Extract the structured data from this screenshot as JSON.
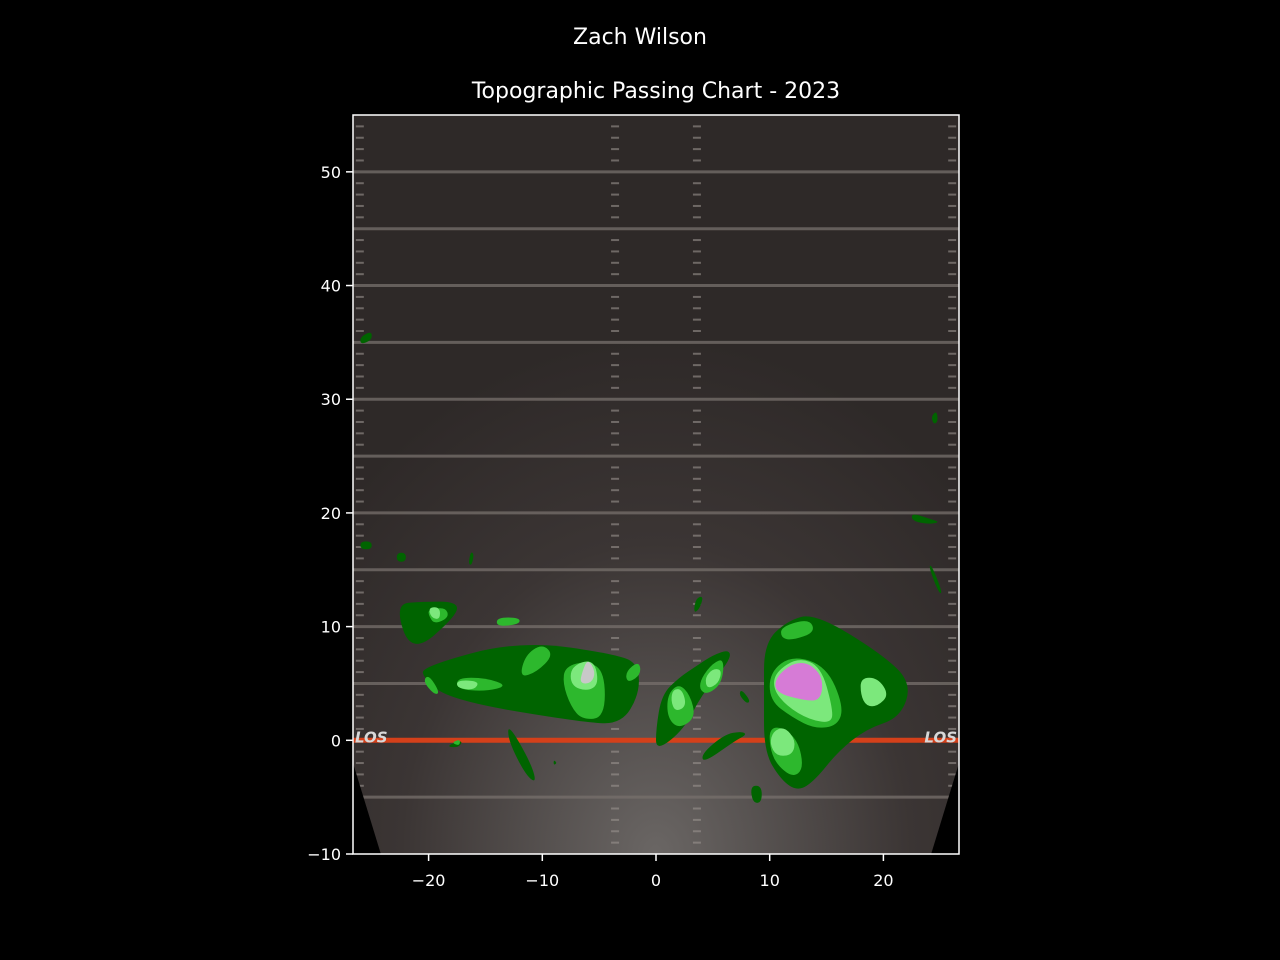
{
  "chart_data": {
    "type": "contour",
    "suptitle": "Zach Wilson",
    "title": "Topographic Passing Chart - 2023",
    "xlabel": "",
    "ylabel": "",
    "xlim": [
      -26.65,
      26.65
    ],
    "ylim": [
      -10,
      55
    ],
    "xticks": [
      -20,
      -10,
      0,
      10,
      20
    ],
    "yticks": [
      -10,
      0,
      10,
      20,
      30,
      40,
      50
    ],
    "xtick_labels": [
      "−20",
      "−10",
      "0",
      "10",
      "20"
    ],
    "ytick_labels": [
      "−10",
      "0",
      "10",
      "20",
      "30",
      "40",
      "50"
    ],
    "grid": false,
    "background": {
      "description": "football field image",
      "yard_lines": [
        -5,
        5,
        10,
        15,
        20,
        25,
        30,
        35,
        40,
        45,
        50
      ],
      "line_of_scrimmage": 0,
      "los_label": "LOS",
      "hash_x": [
        -3.6,
        3.6
      ],
      "los_color": "#d4401a"
    },
    "colors": {
      "level1": "#006400",
      "level2": "#2db82d",
      "level3": "#7ce87c",
      "level4_pink": "#d67bd6",
      "level4_gray": "#c8c8c8",
      "field": "#3a3432"
    },
    "contours": [
      {
        "level": 1,
        "points": [
          [
            -20.5,
            12.2
          ],
          [
            -17.5,
            12.2
          ],
          [
            -17.5,
            11
          ],
          [
            -21.5,
            7.5
          ],
          [
            -23,
            12
          ]
        ]
      },
      {
        "level": 1,
        "points": [
          [
            -20.5,
            6.5
          ],
          [
            -12,
            8.8
          ],
          [
            -3,
            7.5
          ],
          [
            -1.5,
            6.5
          ],
          [
            -1.5,
            4
          ],
          [
            -3,
            1.5
          ],
          [
            -6,
            1.5
          ],
          [
            -18,
            3.5
          ],
          [
            -20.5,
            5.5
          ]
        ]
      },
      {
        "level": 1,
        "points": [
          [
            11.5,
            10.5
          ],
          [
            14,
            11.2
          ],
          [
            20,
            7.5
          ],
          [
            22.5,
            5
          ],
          [
            21.5,
            2
          ],
          [
            18.5,
            1
          ],
          [
            16,
            -1
          ],
          [
            14,
            -3.5
          ],
          [
            12.5,
            -4.5
          ],
          [
            11,
            -3.5
          ],
          [
            9.5,
            -1
          ],
          [
            9.5,
            4
          ],
          [
            9.5,
            8.5
          ]
        ]
      },
      {
        "level": 1,
        "points": [
          [
            0.5,
            4
          ],
          [
            2,
            5.5
          ],
          [
            3.5,
            6.5
          ],
          [
            5,
            7.5
          ],
          [
            6.5,
            8
          ],
          [
            6.5,
            7
          ],
          [
            4,
            4
          ],
          [
            2.5,
            1
          ],
          [
            0,
            -1
          ],
          [
            0,
            1
          ]
        ]
      },
      {
        "level": 1,
        "points": [
          [
            4.2,
            -2
          ],
          [
            7,
            0
          ],
          [
            8,
            0.5
          ],
          [
            7.5,
            0.8
          ],
          [
            6,
            0.5
          ],
          [
            4,
            -1.2
          ]
        ]
      },
      {
        "level": 1,
        "points": [
          [
            -13,
            1.5
          ],
          [
            -11,
            -2
          ],
          [
            -10.5,
            -3.8
          ],
          [
            -11.5,
            -3
          ],
          [
            -13,
            0
          ]
        ]
      },
      {
        "level": 1,
        "points": [
          [
            -26,
            35.5
          ],
          [
            -25,
            36
          ],
          [
            -25,
            35.2
          ],
          [
            -26,
            34.8
          ]
        ]
      },
      {
        "level": 1,
        "points": [
          [
            24.2,
            28.5
          ],
          [
            24.7,
            29
          ],
          [
            24.8,
            28
          ],
          [
            24.4,
            27.8
          ]
        ]
      },
      {
        "level": 1,
        "points": [
          [
            22.5,
            20
          ],
          [
            24,
            19.5
          ],
          [
            25,
            19.2
          ],
          [
            24,
            19
          ],
          [
            22.5,
            19.3
          ]
        ]
      },
      {
        "level": 1,
        "points": [
          [
            24.2,
            15.5
          ],
          [
            25.2,
            13
          ],
          [
            24.9,
            12.9
          ],
          [
            24,
            15.2
          ]
        ]
      },
      {
        "level": 1,
        "points": [
          [
            -26,
            17.5
          ],
          [
            -25,
            17.5
          ],
          [
            -25,
            16.8
          ],
          [
            -26,
            16.8
          ]
        ]
      },
      {
        "level": 1,
        "points": [
          [
            -22.8,
            16.5
          ],
          [
            -22,
            16.5
          ],
          [
            -22,
            15.7
          ],
          [
            -22.8,
            15.7
          ]
        ]
      },
      {
        "level": 1,
        "points": [
          [
            -16.3,
            16.6
          ],
          [
            -16,
            16.4
          ],
          [
            -16.2,
            15.4
          ],
          [
            -16.5,
            15.5
          ]
        ]
      },
      {
        "level": 1,
        "points": [
          [
            3.5,
            12.5
          ],
          [
            4.2,
            12.7
          ],
          [
            3.8,
            11.5
          ],
          [
            3.3,
            11.2
          ]
        ]
      },
      {
        "level": 1,
        "points": [
          [
            7.5,
            4.5
          ],
          [
            8.3,
            3.5
          ],
          [
            8,
            3.2
          ],
          [
            7.3,
            4
          ]
        ]
      },
      {
        "level": 1,
        "points": [
          [
            8.3,
            -4
          ],
          [
            9.3,
            -4
          ],
          [
            9.3,
            -5.5
          ],
          [
            8.5,
            -5.5
          ]
        ]
      },
      {
        "level": 1,
        "points": [
          [
            -18,
            -0.3
          ],
          [
            -17,
            0
          ],
          [
            -17.3,
            -0.6
          ],
          [
            -18.3,
            -0.6
          ]
        ]
      },
      {
        "level": 1,
        "points": [
          [
            -9,
            -1.7
          ],
          [
            -8.7,
            -2
          ],
          [
            -9,
            -2.2
          ]
        ]
      },
      {
        "level": 2,
        "points": [
          [
            -20,
            11.5
          ],
          [
            -18.5,
            11.7
          ],
          [
            -18.2,
            10.8
          ],
          [
            -19.5,
            10.2
          ],
          [
            -20,
            11
          ]
        ]
      },
      {
        "level": 2,
        "points": [
          [
            -10,
            8.5
          ],
          [
            -9,
            7.5
          ],
          [
            -10.5,
            6
          ],
          [
            -12,
            5.5
          ],
          [
            -11.5,
            7.5
          ]
        ]
      },
      {
        "level": 2,
        "points": [
          [
            -14,
            10.8
          ],
          [
            -12,
            10.8
          ],
          [
            -12,
            10.2
          ],
          [
            -14,
            10
          ]
        ]
      },
      {
        "level": 2,
        "points": [
          [
            -8,
            6.5
          ],
          [
            -6,
            7
          ],
          [
            -4.5,
            6
          ],
          [
            -4.5,
            2
          ],
          [
            -6.5,
            1.8
          ],
          [
            -7.5,
            3
          ],
          [
            -8.2,
            5
          ]
        ]
      },
      {
        "level": 2,
        "points": [
          [
            -2.7,
            6
          ],
          [
            -1.5,
            7
          ],
          [
            -1.3,
            5.8
          ],
          [
            -2.5,
            5
          ]
        ]
      },
      {
        "level": 2,
        "points": [
          [
            -20,
            5.8
          ],
          [
            -19,
            4.2
          ],
          [
            -19.5,
            4
          ],
          [
            -20.5,
            5.2
          ]
        ]
      },
      {
        "level": 2,
        "points": [
          [
            -17.5,
            5.5
          ],
          [
            -15,
            5.5
          ],
          [
            -13,
            4.8
          ],
          [
            -15,
            4.3
          ],
          [
            -17.5,
            4.5
          ]
        ]
      },
      {
        "level": 2,
        "points": [
          [
            1,
            4
          ],
          [
            2,
            5
          ],
          [
            3,
            4
          ],
          [
            3.5,
            2
          ],
          [
            2,
            1
          ],
          [
            1,
            2
          ]
        ]
      },
      {
        "level": 2,
        "points": [
          [
            4,
            5.5
          ],
          [
            5,
            6.8
          ],
          [
            6,
            7.2
          ],
          [
            5.8,
            5
          ],
          [
            4.5,
            4
          ],
          [
            3.8,
            4.5
          ]
        ]
      },
      {
        "level": 2,
        "points": [
          [
            11,
            10
          ],
          [
            13.5,
            10.7
          ],
          [
            14,
            9.5
          ],
          [
            12,
            8.8
          ],
          [
            11,
            9
          ]
        ]
      },
      {
        "level": 2,
        "points": [
          [
            10,
            6
          ],
          [
            12,
            7.5
          ],
          [
            15,
            6.5
          ],
          [
            16.5,
            3
          ],
          [
            16,
            1.3
          ],
          [
            14,
            1
          ],
          [
            12,
            2
          ],
          [
            10,
            3.5
          ]
        ]
      },
      {
        "level": 2,
        "points": [
          [
            10,
            1
          ],
          [
            11,
            1.2
          ],
          [
            12.5,
            0
          ],
          [
            13,
            -2.5
          ],
          [
            12,
            -3.3
          ],
          [
            10.5,
            -2
          ],
          [
            10,
            -0.5
          ]
        ]
      },
      {
        "level": 2,
        "points": [
          [
            -18,
            -0.2
          ],
          [
            -17.2,
            0.1
          ],
          [
            -17.3,
            -0.5
          ]
        ]
      },
      {
        "level": 3,
        "points": [
          [
            -20,
            11.7
          ],
          [
            -19,
            11.7
          ],
          [
            -19,
            10.6
          ],
          [
            -19.8,
            10.8
          ]
        ]
      },
      {
        "level": 3,
        "points": [
          [
            -17.5,
            5.3
          ],
          [
            -15.5,
            5.2
          ],
          [
            -16,
            4.4
          ],
          [
            -17.5,
            4.6
          ]
        ]
      },
      {
        "level": 3,
        "points": [
          [
            -7.5,
            6.5
          ],
          [
            -5.5,
            7.2
          ],
          [
            -5,
            5
          ],
          [
            -6,
            4.3
          ],
          [
            -7.5,
            4.8
          ]
        ]
      },
      {
        "level": 3,
        "points": [
          [
            1.5,
            4.5
          ],
          [
            2.3,
            4.5
          ],
          [
            2.7,
            3
          ],
          [
            1.7,
            2.5
          ],
          [
            1.3,
            3.5
          ]
        ]
      },
      {
        "level": 3,
        "points": [
          [
            4.3,
            5.5
          ],
          [
            5,
            6.3
          ],
          [
            5.8,
            6.2
          ],
          [
            5.5,
            5
          ],
          [
            4.5,
            4.5
          ]
        ]
      },
      {
        "level": 3,
        "points": [
          [
            10.5,
            6
          ],
          [
            12.5,
            7.3
          ],
          [
            14.5,
            6.5
          ],
          [
            15.5,
            3
          ],
          [
            15.5,
            1.5
          ],
          [
            13.5,
            1.8
          ],
          [
            11.5,
            3
          ],
          [
            10.3,
            4.5
          ]
        ]
      },
      {
        "level": 3,
        "points": [
          [
            10.3,
            0.8
          ],
          [
            11.3,
            1.2
          ],
          [
            12.3,
            0
          ],
          [
            12,
            -1.3
          ],
          [
            10.6,
            -1.4
          ],
          [
            10,
            -0.3
          ]
        ]
      },
      {
        "level": 3,
        "points": [
          [
            18,
            5.5
          ],
          [
            19.5,
            5.5
          ],
          [
            20.5,
            4
          ],
          [
            19.5,
            3
          ],
          [
            18.5,
            3
          ],
          [
            18,
            4
          ]
        ]
      },
      {
        "level": 4,
        "color_key": "level4_gray",
        "points": [
          [
            -6.5,
            6
          ],
          [
            -6,
            7.2
          ],
          [
            -5.3,
            6
          ],
          [
            -5.7,
            5
          ],
          [
            -6.7,
            5
          ]
        ]
      },
      {
        "level": 4,
        "color_key": "level4_pink",
        "points": [
          [
            10.5,
            5.5
          ],
          [
            12,
            6.8
          ],
          [
            13.5,
            6.8
          ],
          [
            14.7,
            5.5
          ],
          [
            14.5,
            3.5
          ],
          [
            13,
            3.5
          ],
          [
            10.5,
            4.2
          ]
        ]
      }
    ]
  }
}
